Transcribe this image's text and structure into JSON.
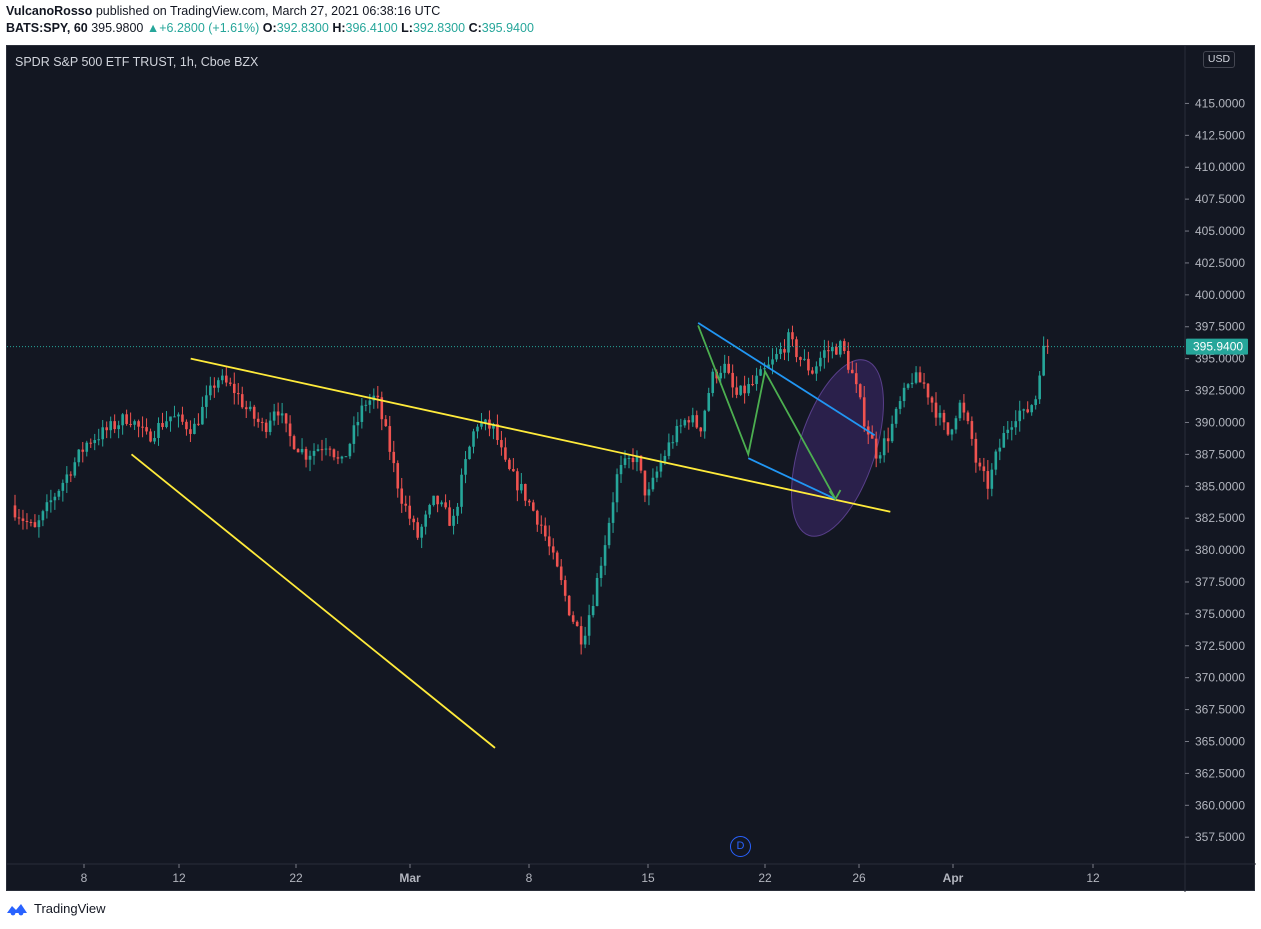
{
  "header": {
    "author": "VulcanoRosso",
    "published_text": " published on TradingView.com, March 27, 2021 06:38:16 UTC",
    "symbol": "BATS:SPY, 60",
    "last": "395.9800",
    "change": "+6.2800 (+1.61%)",
    "open_label": "O:",
    "open": "392.8300",
    "high_label": "H:",
    "high": "396.4100",
    "low_label": "L:",
    "low": "392.8300",
    "close_label": "C:",
    "close": "395.9400"
  },
  "chart_title": "SPDR S&P 500 ETF TRUST, 1h, Cboe BZX",
  "currency_label": "USD",
  "price_badge": "395.9400",
  "dividend_marker": "D",
  "footer": {
    "brand": "TradingView"
  },
  "colors": {
    "background": "#131722",
    "up": "#26a69a",
    "down": "#ef5350",
    "trendline_yellow": "#ffeb3b",
    "channel_blue": "#2196f3",
    "path_green": "#4caf50",
    "ellipse_purple": "#673ab7"
  },
  "chart_data": {
    "type": "candlestick",
    "title": "SPDR S&P 500 ETF TRUST, 1h, Cboe BZX",
    "x_tick_labels": [
      "8",
      "12",
      "22",
      "Mar",
      "8",
      "15",
      "22",
      "26",
      "Apr",
      "12"
    ],
    "y_tick_labels": [
      "357.5000",
      "360.0000",
      "362.5000",
      "365.0000",
      "367.5000",
      "370.0000",
      "372.5000",
      "375.0000",
      "377.5000",
      "380.0000",
      "382.5000",
      "385.0000",
      "387.5000",
      "390.0000",
      "392.5000",
      "395.0000",
      "397.5000",
      "400.0000",
      "402.5000",
      "405.0000",
      "407.5000",
      "410.0000",
      "412.5000",
      "415.0000"
    ],
    "ylim": [
      355.4,
      419.5
    ],
    "last_price": 395.94,
    "price_path": [
      [
        0.0,
        383.5
      ],
      [
        0.02,
        381.5
      ],
      [
        0.035,
        384.0
      ],
      [
        0.055,
        387.0
      ],
      [
        0.065,
        388.5
      ],
      [
        0.08,
        389.3
      ],
      [
        0.1,
        390.5
      ],
      [
        0.115,
        388.8
      ],
      [
        0.135,
        390.5
      ],
      [
        0.155,
        389.5
      ],
      [
        0.175,
        393.5
      ],
      [
        0.19,
        392.5
      ],
      [
        0.2,
        391.0
      ],
      [
        0.215,
        389.5
      ],
      [
        0.225,
        391.5
      ],
      [
        0.235,
        389.0
      ],
      [
        0.25,
        387.5
      ],
      [
        0.27,
        388.5
      ],
      [
        0.28,
        386.5
      ],
      [
        0.29,
        389.0
      ],
      [
        0.3,
        391.5
      ],
      [
        0.31,
        392.0
      ],
      [
        0.32,
        388.5
      ],
      [
        0.33,
        384.5
      ],
      [
        0.345,
        381.0
      ],
      [
        0.36,
        384.0
      ],
      [
        0.375,
        382.0
      ],
      [
        0.385,
        386.5
      ],
      [
        0.395,
        390.0
      ],
      [
        0.41,
        389.5
      ],
      [
        0.42,
        386.5
      ],
      [
        0.435,
        384.5
      ],
      [
        0.45,
        382.0
      ],
      [
        0.465,
        378.0
      ],
      [
        0.475,
        375.0
      ],
      [
        0.485,
        373.0
      ],
      [
        0.495,
        376.5
      ],
      [
        0.505,
        381.0
      ],
      [
        0.515,
        386.0
      ],
      [
        0.53,
        387.5
      ],
      [
        0.54,
        384.0
      ],
      [
        0.55,
        386.5
      ],
      [
        0.56,
        388.5
      ],
      [
        0.575,
        390.5
      ],
      [
        0.585,
        389.5
      ],
      [
        0.595,
        393.5
      ],
      [
        0.605,
        394.5
      ],
      [
        0.615,
        392.0
      ],
      [
        0.63,
        393.0
      ],
      [
        0.645,
        394.5
      ],
      [
        0.66,
        396.5
      ],
      [
        0.67,
        395.0
      ],
      [
        0.68,
        394.0
      ],
      [
        0.69,
        395.5
      ],
      [
        0.705,
        396.0
      ],
      [
        0.715,
        393.5
      ],
      [
        0.725,
        390.0
      ],
      [
        0.735,
        387.5
      ],
      [
        0.745,
        389.0
      ],
      [
        0.755,
        391.5
      ],
      [
        0.765,
        393.5
      ],
      [
        0.775,
        393.0
      ],
      [
        0.785,
        391.0
      ],
      [
        0.795,
        389.0
      ],
      [
        0.805,
        391.5
      ],
      [
        0.815,
        389.0
      ],
      [
        0.82,
        386.5
      ],
      [
        0.83,
        385.0
      ],
      [
        0.835,
        387.0
      ],
      [
        0.845,
        389.5
      ],
      [
        0.855,
        391.0
      ],
      [
        0.86,
        390.5
      ],
      [
        0.87,
        392.0
      ],
      [
        0.875,
        395.5
      ],
      [
        0.88,
        395.94
      ]
    ],
    "drawings": [
      {
        "kind": "trendline",
        "color": "yellow",
        "from": [
          "Feb 10",
          387.5
        ],
        "to": [
          "Mar 6",
          364.5
        ]
      },
      {
        "kind": "trendline",
        "color": "yellow",
        "from": [
          "Feb 13",
          395.0
        ],
        "to": [
          "Mar 28",
          383.0
        ]
      },
      {
        "kind": "parallel_channel",
        "color": "blue",
        "upper": [
          [
            "Mar 18",
            397.8
          ],
          [
            "Mar 27",
            389.0
          ]
        ],
        "lower": [
          [
            "Mar 21",
            387.2
          ],
          [
            "Mar 25",
            384.0
          ]
        ]
      },
      {
        "kind": "path",
        "color": "green",
        "points": [
          [
            "Mar 18",
            397.6
          ],
          [
            "Mar 21",
            387.5
          ],
          [
            "Mar 22",
            394.0
          ],
          [
            "Mar 25",
            384.0
          ]
        ]
      },
      {
        "kind": "ellipse",
        "color": "purple",
        "center": [
          "Mar 25",
          388.0
        ]
      }
    ],
    "grid": false,
    "legend": "none"
  }
}
